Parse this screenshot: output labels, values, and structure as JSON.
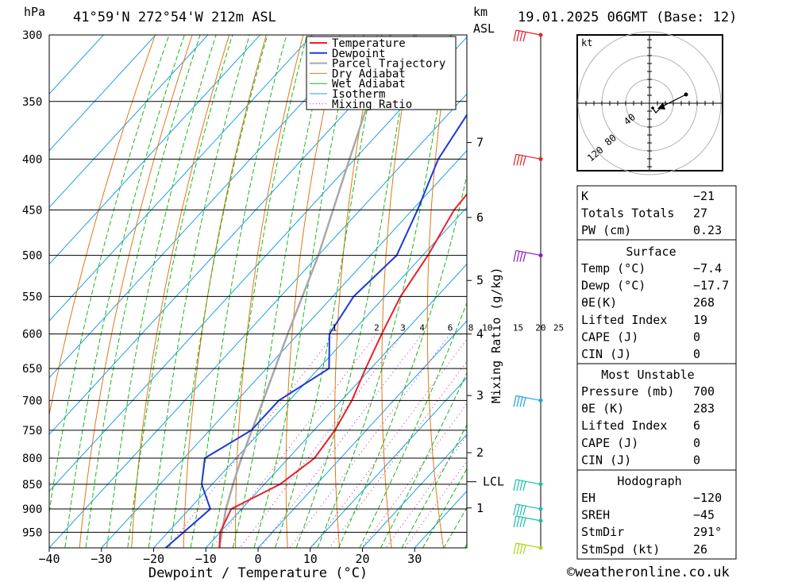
{
  "header": {
    "unit_left": "hPa",
    "location": "41°59'N  272°54'W  212m  ASL",
    "km_label": "km",
    "asl_label": "ASL",
    "datetime": "19.01.2025  06GMT  (Base: 12)"
  },
  "chart_data": {
    "type": "line",
    "subtype": "skew-T log-P",
    "xlabel": "Dewpoint / Temperature (°C)",
    "ylabel_right": "Mixing Ratio (g/kg)",
    "x_ticks": [
      -40,
      -30,
      -20,
      -10,
      0,
      10,
      20,
      30
    ],
    "pressure_levels": [
      300,
      350,
      400,
      450,
      500,
      550,
      600,
      650,
      700,
      750,
      800,
      850,
      900,
      950
    ],
    "pressure_range": [
      300,
      985
    ],
    "temperature_range_at_bottom": [
      -40,
      40
    ],
    "legend": [
      "Temperature",
      "Dewpoint",
      "Parcel Trajectory",
      "Dry Adiabat",
      "Wet Adiabat",
      "Isotherm",
      "Mixing Ratio"
    ],
    "legend_placement": "top-right of plot",
    "colors": {
      "temperature": "#e8202a",
      "dewpoint": "#1a3ad8",
      "parcel": "#a8a8a8",
      "dry_adiabat": "#e07818",
      "wet_adiabat": "#18b818",
      "isotherm": "#1ca0e8",
      "mixing_ratio": "#c0189a"
    },
    "series": [
      {
        "name": "Temperature",
        "points": [
          [
            985,
            -7.4
          ],
          [
            950,
            -10
          ],
          [
            900,
            -12
          ],
          [
            850,
            -7
          ],
          [
            800,
            -5
          ],
          [
            750,
            -6
          ],
          [
            700,
            -8
          ],
          [
            650,
            -11
          ],
          [
            600,
            -14
          ],
          [
            550,
            -17
          ],
          [
            500,
            -19
          ],
          [
            450,
            -22
          ],
          [
            400,
            -23
          ],
          [
            350,
            -24
          ],
          [
            300,
            -25
          ]
        ]
      },
      {
        "name": "Dewpoint",
        "points": [
          [
            985,
            -17.7
          ],
          [
            950,
            -17
          ],
          [
            900,
            -16
          ],
          [
            850,
            -22
          ],
          [
            800,
            -26
          ],
          [
            750,
            -22
          ],
          [
            700,
            -22
          ],
          [
            650,
            -18
          ],
          [
            600,
            -24
          ],
          [
            550,
            -26
          ],
          [
            500,
            -25
          ],
          [
            450,
            -29
          ],
          [
            400,
            -34
          ],
          [
            350,
            -37
          ],
          [
            300,
            -37
          ]
        ]
      },
      {
        "name": "Parcel Trajectory",
        "points": [
          [
            985,
            -7.4
          ],
          [
            900,
            -13
          ],
          [
            850,
            -16
          ],
          [
            800,
            -19
          ],
          [
            700,
            -25
          ],
          [
            600,
            -32
          ],
          [
            500,
            -40
          ],
          [
            400,
            -51
          ],
          [
            300,
            -65
          ]
        ]
      }
    ],
    "mixing_ratio_labels": [
      "1",
      "2",
      "3",
      "4",
      "6",
      "8",
      "10",
      "15",
      "20",
      "25"
    ],
    "mixing_ratio_values": [
      1,
      2,
      3,
      4,
      6,
      8,
      10,
      15,
      20,
      25
    ],
    "km_labels": [
      "7",
      "6",
      "5",
      "4",
      "3",
      "2",
      "1"
    ],
    "km_levels_hpa": [
      385,
      458,
      530,
      600,
      692,
      790,
      898
    ],
    "lcl_label": "LCL",
    "lcl_hpa": 845,
    "wind_barbs_hpa": [
      300,
      400,
      500,
      700,
      850,
      900,
      925,
      985
    ]
  },
  "hodograph": {
    "unit": "kt",
    "ring_labels": [
      "40",
      "80",
      "120"
    ]
  },
  "indices": {
    "table1": [
      {
        "label": "K",
        "value": "-21"
      },
      {
        "label": "Totals Totals",
        "value": "27"
      },
      {
        "label": "PW (cm)",
        "value": "0.23"
      }
    ],
    "surface_title": "Surface",
    "surface": [
      {
        "label": "Temp (°C)",
        "value": "-7.4"
      },
      {
        "label": "Dewp (°C)",
        "value": "-17.7"
      },
      {
        "label": "θE(K)",
        "value": "268"
      },
      {
        "label": "Lifted Index",
        "value": "19"
      },
      {
        "label": "CAPE (J)",
        "value": "0"
      },
      {
        "label": "CIN (J)",
        "value": "0"
      }
    ],
    "mu_title": "Most Unstable",
    "most_unstable": [
      {
        "label": "Pressure (mb)",
        "value": "700"
      },
      {
        "label": "θE (K)",
        "value": "283"
      },
      {
        "label": "Lifted Index",
        "value": "6"
      },
      {
        "label": "CAPE (J)",
        "value": "0"
      },
      {
        "label": "CIN (J)",
        "value": "0"
      }
    ],
    "hodo_title": "Hodograph",
    "hodograph_params": [
      {
        "label": "EH",
        "value": "-120"
      },
      {
        "label": "SREH",
        "value": "-45"
      },
      {
        "label": "StmDir",
        "value": "291°"
      },
      {
        "label": "StmSpd (kt)",
        "value": "26"
      }
    ]
  },
  "footer": {
    "copyright": "©weatheronline.co.uk"
  }
}
